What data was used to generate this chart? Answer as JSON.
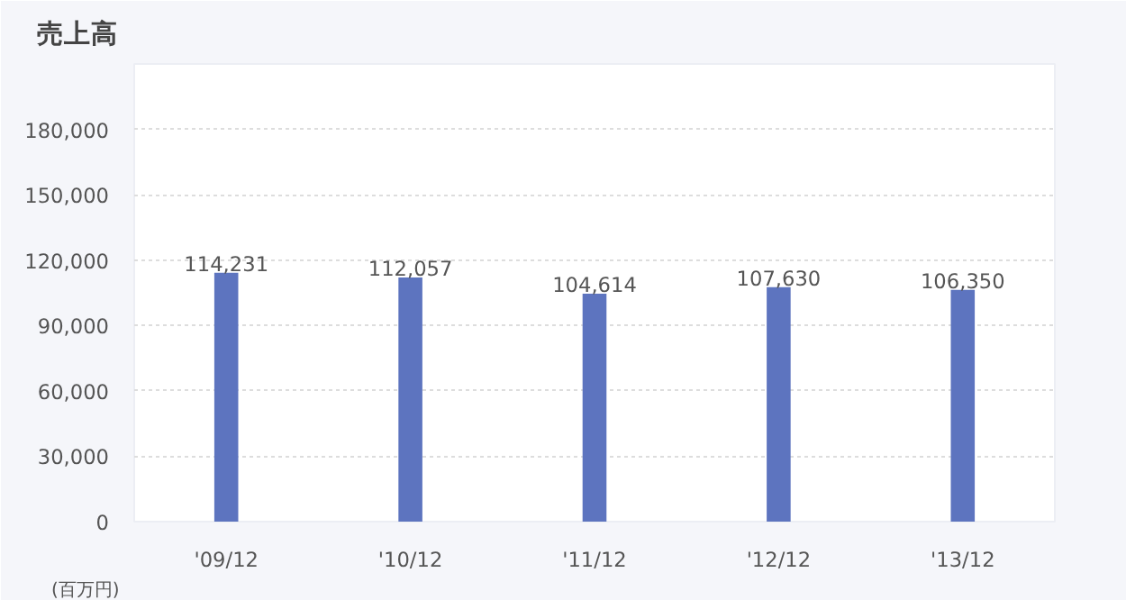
{
  "chart_data": {
    "type": "bar",
    "title": "売上高",
    "categories": [
      "'09/12",
      "'10/12",
      "'11/12",
      "'12/12",
      "'13/12"
    ],
    "values": [
      114231,
      112057,
      104614,
      107630,
      106350
    ],
    "color": "#5d74bf",
    "ylim": [
      0,
      210000
    ],
    "yticks": [
      {
        "value": 0,
        "label": "0"
      },
      {
        "value": 30000,
        "label": "30,000"
      },
      {
        "value": 60000,
        "label": "60,000"
      },
      {
        "value": 90000,
        "label": "90,000"
      },
      {
        "value": 120000,
        "label": "120,000"
      },
      {
        "value": 150000,
        "label": "150,000"
      },
      {
        "value": 180000,
        "label": "180,000"
      }
    ],
    "value_labels": [
      "114,231",
      "112,057",
      "104,614",
      "107,630",
      "106,350"
    ],
    "grid": "y",
    "annotations": [
      "(百万円)"
    ]
  }
}
